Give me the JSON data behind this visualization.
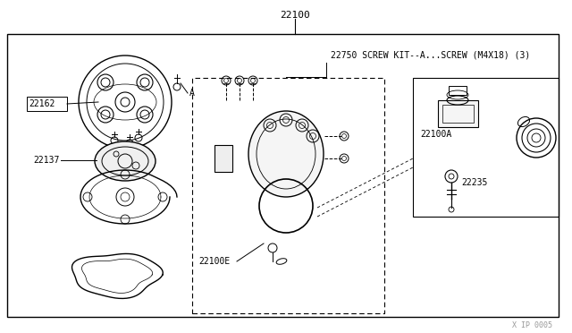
{
  "bg_color": "#ffffff",
  "line_color": "#000000",
  "gray_color": "#999999",
  "fig_width": 6.4,
  "fig_height": 3.72,
  "dpi": 100,
  "watermark": "X IP 0005",
  "label_22100": "22100",
  "label_22162": "22162",
  "label_22137": "22137",
  "label_22100E": "22100E",
  "label_22100A": "22100A",
  "label_22235": "22235",
  "label_22750": "22750 SCREW KIT--A...SCREW (M4X18) (3)",
  "label_A": "A"
}
